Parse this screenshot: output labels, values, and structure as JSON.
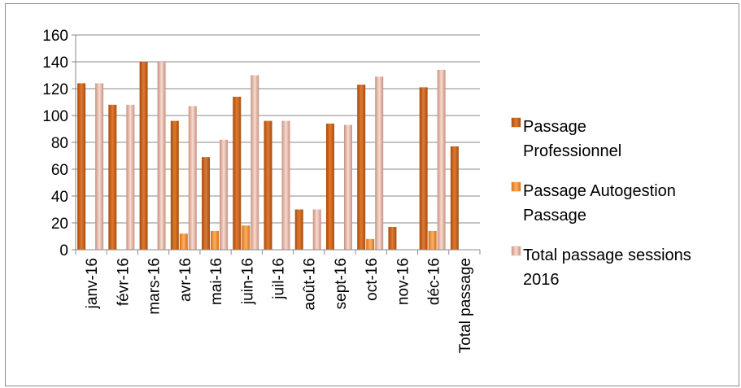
{
  "chart_data": {
    "type": "bar",
    "title": "",
    "xlabel": "",
    "ylabel": "",
    "ylim": [
      0,
      160
    ],
    "yticks": [
      0,
      20,
      40,
      60,
      80,
      100,
      120,
      140,
      160
    ],
    "grid": true,
    "legend_position": "right",
    "categories": [
      "janv-16",
      "févr-16",
      "mars-16",
      "avr-16",
      "mai-16",
      "juin-16",
      "juil-16",
      "août-16",
      "sept-16",
      "oct-16",
      "nov-16",
      "déc-16",
      "Total passage"
    ],
    "series": [
      {
        "name": "Passage Professionnel",
        "color": "#c8641e",
        "values": [
          124,
          108,
          140,
          96,
          69,
          114,
          96,
          30,
          94,
          123,
          17,
          121,
          77
        ]
      },
      {
        "name": "Passage Autogestion Passage",
        "color": "#f08c28",
        "values": [
          0,
          0,
          0,
          12,
          14,
          18,
          0,
          0,
          0,
          8,
          0,
          14,
          0
        ]
      },
      {
        "name": "Total passage sessions 2016",
        "color": "#e8b4a4",
        "values": [
          124,
          108,
          140,
          107,
          82,
          130,
          96,
          30,
          93,
          129,
          0,
          134,
          0
        ]
      }
    ],
    "legend_lines": [
      [
        "Passage",
        "Professionnel"
      ],
      [
        "Passage Autogestion",
        "Passage"
      ],
      [
        "Total passage sessions",
        "2016"
      ]
    ]
  }
}
